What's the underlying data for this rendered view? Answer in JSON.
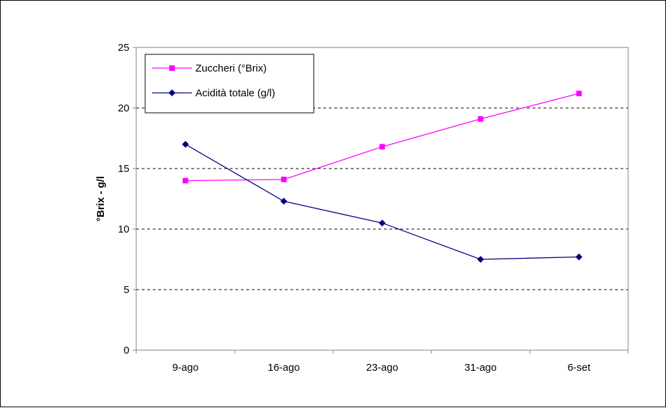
{
  "chart_data": {
    "type": "line",
    "title": "",
    "xlabel": "",
    "ylabel": "°Brix - g/l",
    "ylim": [
      0,
      25
    ],
    "yticks": [
      0,
      5,
      10,
      15,
      20,
      25
    ],
    "grid": "horizontal-dashed",
    "legend_position": "top-left",
    "categories": [
      "9-ago",
      "16-ago",
      "23-ago",
      "31-ago",
      "6-set"
    ],
    "series": [
      {
        "name": "Zuccheri (°Brix)",
        "values": [
          14.0,
          14.1,
          16.8,
          19.1,
          21.2
        ],
        "color": "#ff00ff",
        "marker": "square"
      },
      {
        "name": "Acidità totale (g/l)",
        "values": [
          17.0,
          12.3,
          10.5,
          7.5,
          7.7
        ],
        "color": "#000080",
        "marker": "diamond"
      }
    ]
  }
}
